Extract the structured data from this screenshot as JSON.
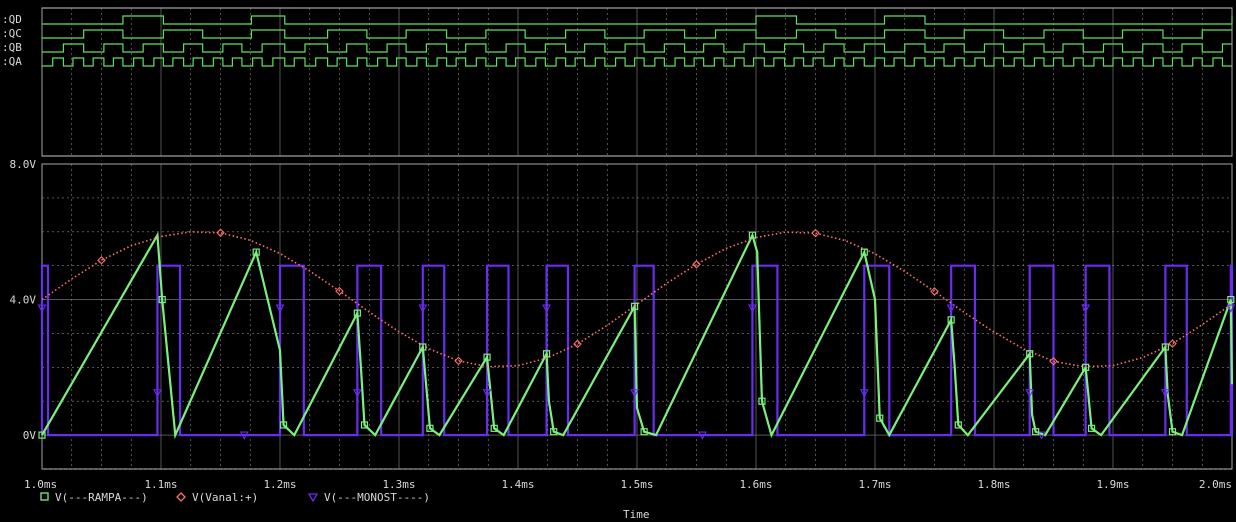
{
  "chart_data": [
    {
      "type": "line",
      "title": "",
      "digital_signals": [
        {
          "name": ":QD",
          "color": "#5fdf5f",
          "transitions_ms": [
            1.068,
            1.102,
            1.176,
            1.204,
            1.6,
            1.634,
            1.708,
            1.742,
            2.0
          ]
        },
        {
          "name": ":QC",
          "color": "#5fdf5f",
          "transitions_ms": [
            1.035,
            1.068,
            1.102,
            1.135,
            1.176,
            1.204,
            1.24,
            1.273,
            1.306,
            1.34,
            1.373,
            1.406,
            1.44,
            1.473,
            1.506,
            1.54,
            1.566,
            1.6,
            1.634,
            1.667,
            1.708,
            1.742,
            1.775,
            1.808,
            1.842,
            1.875,
            1.908,
            1.942,
            1.975
          ]
        },
        {
          "name": ":QB",
          "color": "#5fdf5f",
          "transitions_ms": [
            1.018,
            1.035,
            1.052,
            1.068,
            1.085,
            1.102,
            1.119,
            1.135,
            1.152,
            1.168,
            1.185,
            1.204,
            1.221,
            1.24,
            1.256,
            1.273,
            1.29,
            1.306,
            1.323,
            1.34,
            1.356,
            1.373,
            1.39,
            1.406,
            1.423,
            1.44,
            1.456,
            1.473,
            1.49,
            1.506,
            1.523,
            1.54,
            1.556,
            1.573,
            1.59,
            1.607,
            1.624,
            1.64,
            1.657,
            1.674,
            1.691,
            1.708,
            1.725,
            1.742,
            1.758,
            1.775,
            1.792,
            1.808,
            1.825,
            1.842,
            1.858,
            1.875,
            1.892,
            1.908,
            1.925,
            1.942,
            1.958,
            1.975,
            1.992
          ]
        },
        {
          "name": ":QA",
          "color": "#5fdf5f",
          "transitions_ms": [
            1.009,
            1.018,
            1.026,
            1.035,
            1.043,
            1.052,
            1.06,
            1.068,
            1.077,
            1.085,
            1.094,
            1.102,
            1.11,
            1.119,
            1.127,
            1.135,
            1.144,
            1.152,
            1.16,
            1.168,
            1.177,
            1.185,
            1.194,
            1.204,
            1.212,
            1.221,
            1.23,
            1.24,
            1.248,
            1.256,
            1.265,
            1.273,
            1.282,
            1.29,
            1.298,
            1.306,
            1.315,
            1.323,
            1.332,
            1.34,
            1.348,
            1.356,
            1.365,
            1.373,
            1.382,
            1.39,
            1.398,
            1.406,
            1.415,
            1.423,
            1.432,
            1.44,
            1.448,
            1.456,
            1.465,
            1.473,
            1.482,
            1.49,
            1.498,
            1.506,
            1.515,
            1.523,
            1.532,
            1.54,
            1.548,
            1.556,
            1.565,
            1.573,
            1.582,
            1.59,
            1.598,
            1.607,
            1.615,
            1.624,
            1.632,
            1.64,
            1.648,
            1.657,
            1.666,
            1.674,
            1.682,
            1.691,
            1.7,
            1.708,
            1.716,
            1.725,
            1.733,
            1.742,
            1.75,
            1.758,
            1.767,
            1.775,
            1.784,
            1.792,
            1.8,
            1.808,
            1.817,
            1.825,
            1.834,
            1.842,
            1.85,
            1.858,
            1.867,
            1.875,
            1.884,
            1.892,
            1.9,
            1.908,
            1.917,
            1.925,
            1.934,
            1.942,
            1.95,
            1.958,
            1.967,
            1.975,
            1.984,
            1.992
          ]
        }
      ]
    },
    {
      "type": "line",
      "title": "",
      "xlabel": "Time",
      "ylabel": "",
      "xlim": [
        1.0,
        2.0
      ],
      "ylim": [
        -1.0,
        8.0
      ],
      "x_ticks": [
        {
          "v": 1.0,
          "label": "1.0ms"
        },
        {
          "v": 1.1,
          "label": "1.1ms"
        },
        {
          "v": 1.2,
          "label": "1.2ms"
        },
        {
          "v": 1.3,
          "label": "1.3ms"
        },
        {
          "v": 1.4,
          "label": "1.4ms"
        },
        {
          "v": 1.5,
          "label": "1.5ms"
        },
        {
          "v": 1.6,
          "label": "1.6ms"
        },
        {
          "v": 1.7,
          "label": "1.7ms"
        },
        {
          "v": 1.8,
          "label": "1.8ms"
        },
        {
          "v": 1.9,
          "label": "1.9ms"
        },
        {
          "v": 2.0,
          "label": "2.0ms"
        }
      ],
      "y_ticks": [
        {
          "v": 8.0,
          "label": "8.0V"
        },
        {
          "v": 4.0,
          "label": "4.0V"
        },
        {
          "v": 0.0,
          "label": "0V"
        }
      ],
      "grid": true,
      "legend_position": "bottom-left",
      "series": [
        {
          "name": "V(---RAMPA---)",
          "color": "#7cf07c",
          "marker": "square",
          "x": [
            1.0,
            1.097,
            1.101,
            1.112,
            1.18,
            1.2,
            1.203,
            1.212,
            1.265,
            1.268,
            1.271,
            1.28,
            1.32,
            1.322,
            1.326,
            1.334,
            1.374,
            1.376,
            1.38,
            1.388,
            1.424,
            1.426,
            1.43,
            1.438,
            1.498,
            1.5,
            1.506,
            1.516,
            1.597,
            1.601,
            1.605,
            1.613,
            1.691,
            1.7,
            1.704,
            1.712,
            1.764,
            1.767,
            1.77,
            1.778,
            1.83,
            1.832,
            1.835,
            1.843,
            1.877,
            1.879,
            1.882,
            1.89,
            1.944,
            1.946,
            1.95,
            1.958,
            1.999,
            2.0
          ],
          "y": [
            0.0,
            5.9,
            4.0,
            0.0,
            5.4,
            2.5,
            0.3,
            0.0,
            3.6,
            2.0,
            0.3,
            0.0,
            2.6,
            1.8,
            0.2,
            0.0,
            2.3,
            1.6,
            0.2,
            0.0,
            2.4,
            1.0,
            0.1,
            0.0,
            3.8,
            0.8,
            0.1,
            0.0,
            5.9,
            5.4,
            1.0,
            0.0,
            5.4,
            4.0,
            0.5,
            0.0,
            3.4,
            2.0,
            0.3,
            0.0,
            2.4,
            0.6,
            0.1,
            0.0,
            2.0,
            1.3,
            0.2,
            0.0,
            2.6,
            1.2,
            0.1,
            0.0,
            4.0,
            1.5
          ]
        },
        {
          "name": "V(Vanal:+)",
          "color": "#ff6f6f",
          "marker": "diamond",
          "style": "dotted",
          "x": [
            1.0,
            1.025,
            1.05,
            1.075,
            1.1,
            1.125,
            1.15,
            1.175,
            1.2,
            1.225,
            1.25,
            1.275,
            1.3,
            1.325,
            1.35,
            1.375,
            1.4,
            1.425,
            1.45,
            1.475,
            1.5,
            1.525,
            1.55,
            1.575,
            1.6,
            1.625,
            1.65,
            1.675,
            1.7,
            1.725,
            1.75,
            1.775,
            1.8,
            1.825,
            1.85,
            1.875,
            1.9,
            1.925,
            1.95,
            1.975,
            2.0
          ],
          "y": [
            4.0,
            4.61,
            5.16,
            5.59,
            5.86,
            6.0,
            5.97,
            5.75,
            5.36,
            4.84,
            4.25,
            3.63,
            3.05,
            2.55,
            2.19,
            2.02,
            2.05,
            2.28,
            2.69,
            3.24,
            3.86,
            4.48,
            5.04,
            5.51,
            5.83,
            5.99,
            5.96,
            5.74,
            5.35,
            4.83,
            4.24,
            3.62,
            3.04,
            2.54,
            2.18,
            2.02,
            2.05,
            2.29,
            2.7,
            3.26,
            3.87
          ]
        },
        {
          "name": "V(---MONOST----)",
          "color": "#6a2cf0",
          "marker": "triangle",
          "pulses": [
            [
              1.0,
              1.005
            ],
            [
              1.097,
              1.116
            ],
            [
              1.2,
              1.22
            ],
            [
              1.265,
              1.285
            ],
            [
              1.32,
              1.338
            ],
            [
              1.374,
              1.392
            ],
            [
              1.424,
              1.442
            ],
            [
              1.498,
              1.514
            ],
            [
              1.597,
              1.618
            ],
            [
              1.691,
              1.712
            ],
            [
              1.764,
              1.784
            ],
            [
              1.83,
              1.85
            ],
            [
              1.877,
              1.897
            ],
            [
              1.944,
              1.962
            ],
            [
              1.999,
              2.0
            ]
          ],
          "high": 5.0,
          "low": 0.0
        }
      ]
    }
  ],
  "legend": [
    {
      "marker": "square-icon",
      "label": "V(---RAMPA---)",
      "color": "#7cf07c"
    },
    {
      "marker": "diamond-icon",
      "label": "V(Vanal:+)",
      "color": "#ff6f6f"
    },
    {
      "marker": "triangle-icon",
      "label": "V(---MONOST----)",
      "color": "#6a2cf0"
    }
  ],
  "colors": {
    "frame": "#c8c8c8",
    "grid": "#8a8a8a",
    "text": "#d8d8d8",
    "background": "#000000"
  }
}
